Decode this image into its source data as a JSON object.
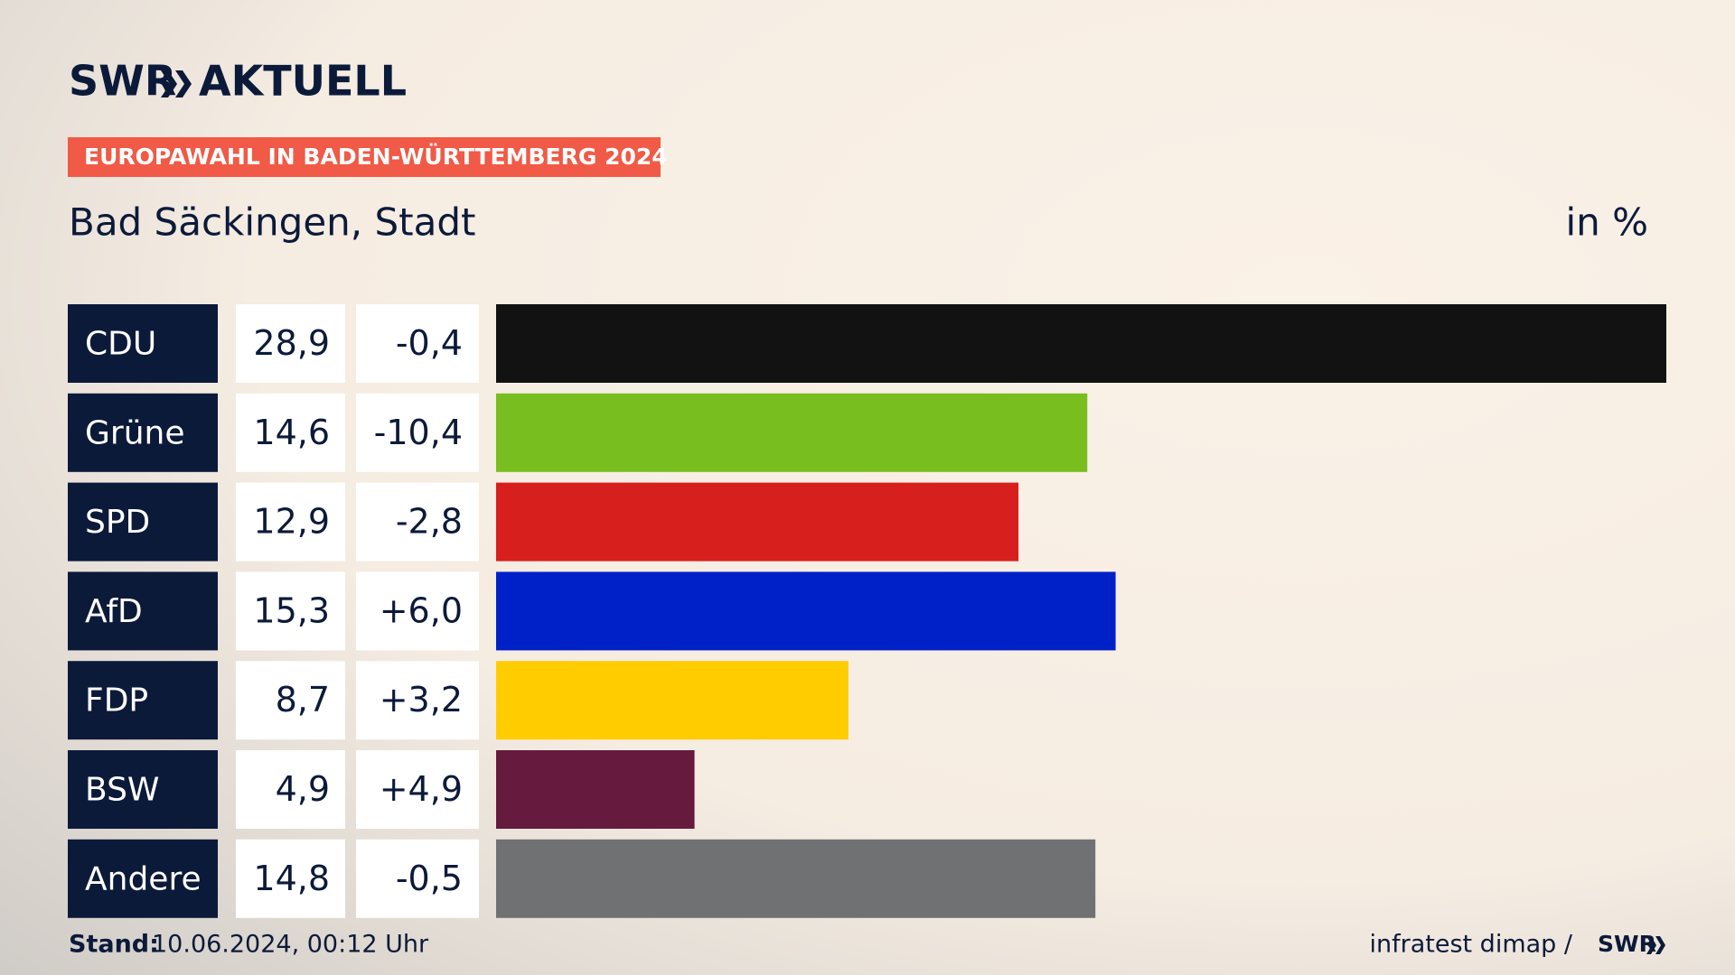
{
  "header": {
    "brand": "SWR",
    "brand_sub": "AKTUELL",
    "tag": "EUROPAWAHL IN BADEN-WÜRTTEMBERG 2024"
  },
  "chart_data": {
    "type": "bar",
    "title": "Bad Säckingen, Stadt",
    "unit": "in %",
    "categories": [
      "CDU",
      "Grüne",
      "SPD",
      "AfD",
      "FDP",
      "BSW",
      "Andere"
    ],
    "values": [
      28.9,
      14.6,
      12.9,
      15.3,
      8.7,
      4.9,
      14.8
    ],
    "value_labels": [
      "28,9",
      "14,6",
      "12,9",
      "15,3",
      "8,7",
      "4,9",
      "14,8"
    ],
    "changes": [
      -0.4,
      -10.4,
      -2.8,
      6.0,
      3.2,
      4.9,
      -0.5
    ],
    "change_labels": [
      "-0,4",
      "-10,4",
      "-2,8",
      "+6,0",
      "+3,2",
      "+4,9",
      "-0,5"
    ],
    "colors": [
      "#121212",
      "#78be1e",
      "#d71f1d",
      "#0021c8",
      "#ffcc00",
      "#661a3e",
      "#707173"
    ]
  },
  "footer": {
    "stand_label": "Stand:",
    "stand": "10.06.2024, 00:12 Uhr",
    "source": "infratest dimap /",
    "source_brand": "SWR"
  }
}
